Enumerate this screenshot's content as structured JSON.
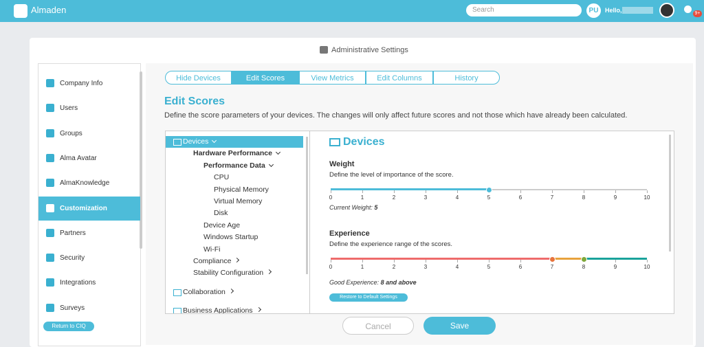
{
  "header": {
    "brand": "Almaden",
    "search_placeholder": "Search",
    "avatar_initials": "PU",
    "greeting": "Hello,",
    "badge": "9+"
  },
  "page_title": "Administrative Settings",
  "sidebar": {
    "items": [
      "Company Info",
      "Users",
      "Groups",
      "Alma Avatar",
      "AlmaKnowledge",
      "Customization",
      "Partners",
      "Security",
      "Integrations",
      "Surveys"
    ],
    "active": 5,
    "back_button": "Return to CIQ"
  },
  "tabs": {
    "items": [
      "Hide Devices",
      "Edit Scores",
      "View Metrics",
      "Edit Columns",
      "History"
    ],
    "active": 1
  },
  "section": {
    "title": "Edit Scores",
    "description": "Define the score parameters of your devices. The changes will only affect future scores and not those which have already been calculated."
  },
  "tree": {
    "active": 0,
    "items": [
      {
        "label": "Devices",
        "level": 0,
        "toggle": "down",
        "icon": true
      },
      {
        "label": "Hardware Performance",
        "level": 1,
        "toggle": "down",
        "bold": true
      },
      {
        "label": "Performance Data",
        "level": 2,
        "toggle": "down",
        "bold": true
      },
      {
        "label": "CPU",
        "level": 3
      },
      {
        "label": "Physical Memory",
        "level": 3
      },
      {
        "label": "Virtual Memory",
        "level": 3
      },
      {
        "label": "Disk",
        "level": 3
      },
      {
        "label": "Device Age",
        "level": 2
      },
      {
        "label": "Windows Startup",
        "level": 2
      },
      {
        "label": "Wi-Fi",
        "level": 2
      },
      {
        "label": "Compliance",
        "level": 1,
        "toggle": "right"
      },
      {
        "label": "Stability Configuration",
        "level": 1,
        "toggle": "right"
      },
      {
        "label": "Collaboration",
        "level": 0,
        "toggle": "right",
        "icon": true,
        "gap": true
      },
      {
        "label": "Business Applications",
        "level": 0,
        "toggle": "right",
        "icon": true,
        "gap": true
      }
    ]
  },
  "panel": {
    "title": "Devices",
    "weight": {
      "label": "Weight",
      "description": "Define the level of importance of the score.",
      "ticks": [
        0,
        1,
        2,
        3,
        4,
        5,
        6,
        7,
        8,
        9,
        10
      ],
      "value": 5,
      "value_label": "Current Weight:"
    },
    "experience": {
      "label": "Experience",
      "description": "Define the experience range of the scores.",
      "ticks": [
        0,
        1,
        2,
        3,
        4,
        5,
        6,
        7,
        8,
        9,
        10
      ],
      "low": 7,
      "high": 8,
      "value_label": "Good Experience:",
      "value_text": "8 and above"
    },
    "restore_button": "Restore to Default Settings"
  },
  "buttons": {
    "cancel": "Cancel",
    "save": "Save"
  }
}
